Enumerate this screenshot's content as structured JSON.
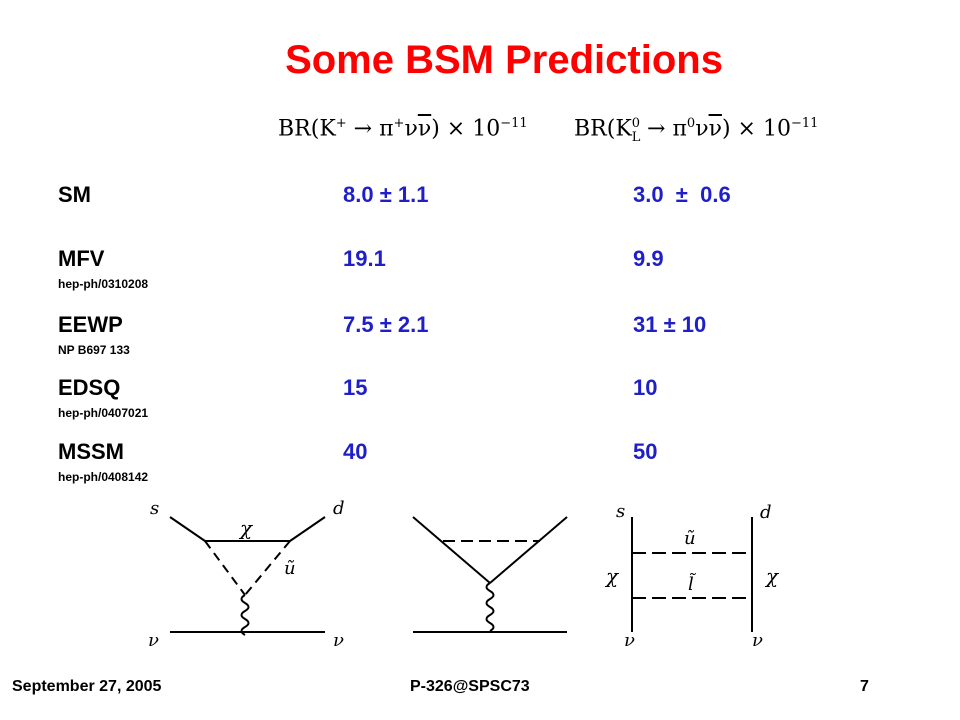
{
  "slide": {
    "title": "Some BSM Predictions",
    "columns": {
      "charged": "BR(K⁺ → π⁺νν̅) × 10⁻¹¹",
      "neutral": "BR(K⁰_L → π⁰νν̅) × 10⁻¹¹"
    },
    "rows": [
      {
        "model": "SM",
        "ref": "",
        "charged": "8.0 ± 1.1",
        "neutral": "3.0  ±  0.6"
      },
      {
        "model": "MFV",
        "ref": "hep-ph/0310208",
        "charged": "19.1",
        "neutral": "9.9"
      },
      {
        "model": "EEWP",
        "ref": "NP B697 133",
        "charged": "7.5 ± 2.1",
        "neutral": "31 ± 10"
      },
      {
        "model": "EDSQ",
        "ref": "hep-ph/0407021",
        "charged": "15",
        "neutral": "10"
      },
      {
        "model": "MSSM",
        "ref": "hep-ph/0408142",
        "charged": "40",
        "neutral": "50"
      }
    ],
    "diagrams": {
      "d1": {
        "s": "s",
        "d": "d",
        "chi": "χ",
        "u": "ũ",
        "nu_left": "ν",
        "nu_right": "ν"
      },
      "d3": {
        "s": "s",
        "d": "d",
        "u": "ũ",
        "l": "l̃",
        "chi_left": "χ",
        "chi_right": "χ",
        "nu_left": "ν",
        "nu_right": "ν"
      }
    }
  },
  "footer": {
    "date": "September 27, 2005",
    "center": "P-326@SPSC73",
    "page": "7"
  }
}
